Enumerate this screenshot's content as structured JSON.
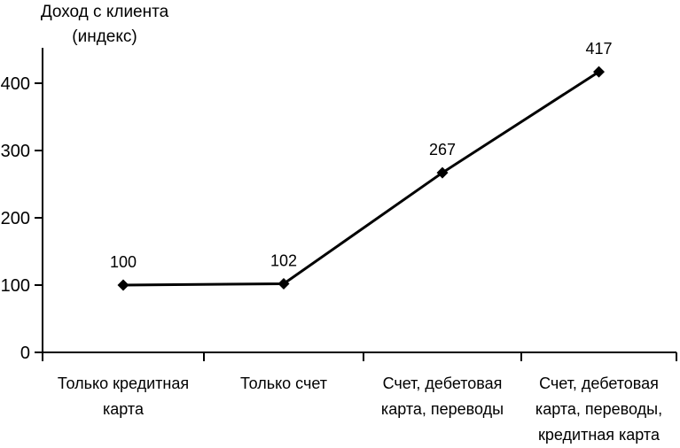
{
  "chart_data": {
    "type": "line",
    "title": "Доход с клиента (индекс)",
    "title_lines": [
      "Доход с клиента",
      "(индекс)"
    ],
    "categories": [
      "Только кредитная\nкарта",
      "Только счет",
      "Счет, дебетовая\nкарта, переводы",
      "Счет, дебетовая\nкарта, переводы,\nкредитная карта"
    ],
    "values": [
      100,
      102,
      267,
      417
    ],
    "data_labels": [
      "100",
      "102",
      "267",
      "417"
    ],
    "y_ticks": [
      0,
      100,
      200,
      300,
      400
    ],
    "y_tick_labels": [
      "0",
      "100",
      "200",
      "300",
      "400"
    ],
    "ylim": [
      0,
      452
    ],
    "xlabel": "",
    "ylabel": "Доход с клиента (индекс)",
    "grid": false,
    "legend": "none",
    "marker": "diamond",
    "line_color": "#000000",
    "marker_color": "#000000",
    "text_color": "#000000",
    "background_color": "#ffffff"
  }
}
